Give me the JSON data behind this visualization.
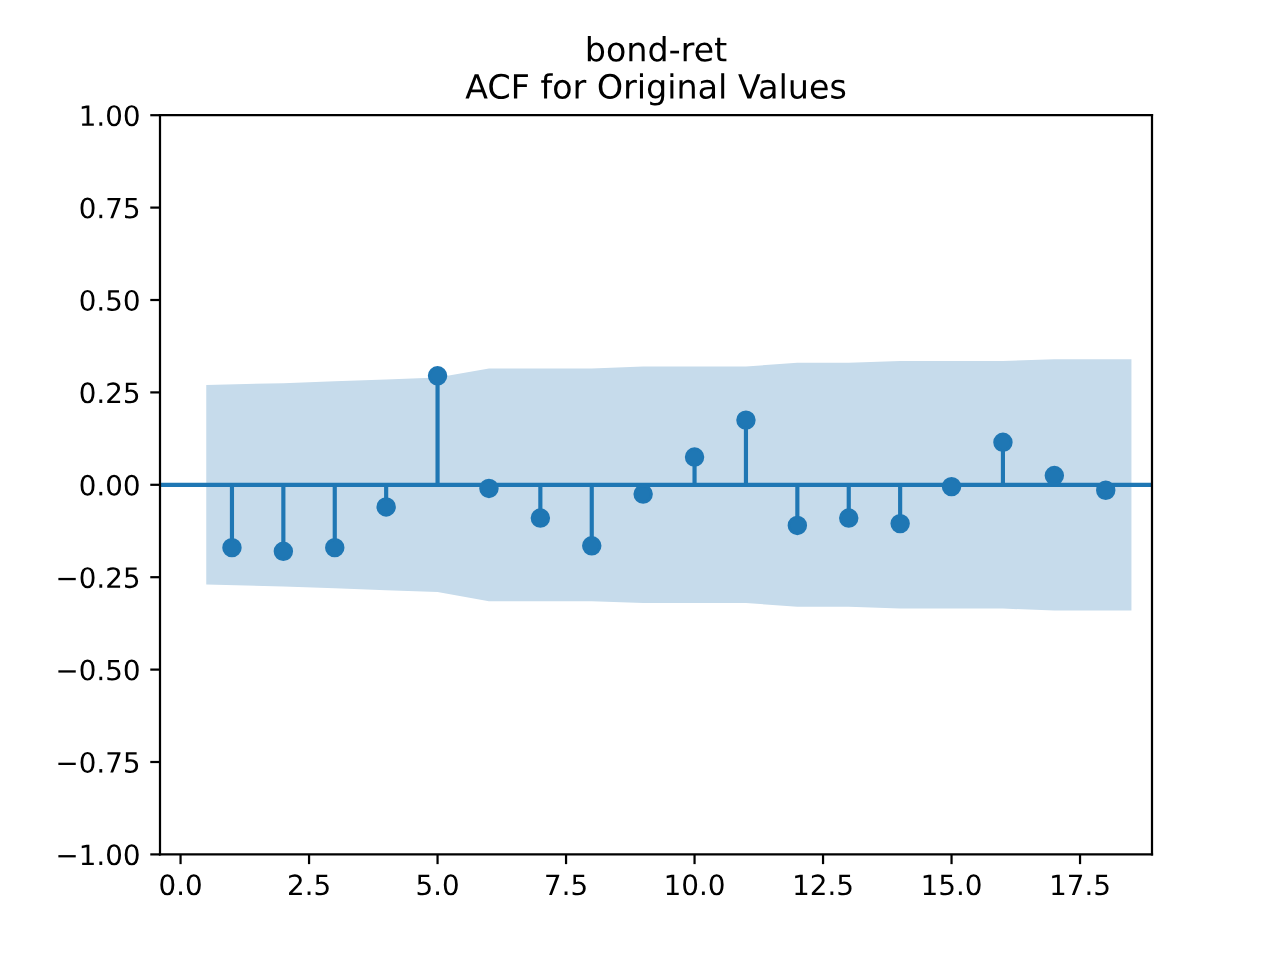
{
  "chart_data": {
    "type": "lollipop",
    "title": "bond-ret",
    "subtitle": "ACF for Original Values",
    "x": [
      1,
      2,
      3,
      4,
      5,
      6,
      7,
      8,
      9,
      10,
      11,
      12,
      13,
      14,
      15,
      16,
      17,
      18
    ],
    "series": [
      {
        "color": "#1f77b4",
        "values": [
          -0.17,
          -0.18,
          -0.17,
          -0.06,
          0.295,
          -0.01,
          -0.09,
          -0.165,
          -0.025,
          0.075,
          0.175,
          -0.11,
          -0.09,
          -0.105,
          -0.005,
          0.115,
          0.025,
          -0.015
        ]
      },
      {
        "type": "line",
        "color": "#c6dbeb",
        "x": [
          0.5,
          2,
          3,
          4,
          5,
          6,
          7,
          8,
          9,
          10,
          11,
          12,
          13,
          14,
          15,
          16,
          17,
          18.5
        ],
        "values": [
          null,
          null,
          null,
          null,
          null,
          null,
          null,
          null,
          null,
          null,
          null,
          null,
          null,
          null,
          null,
          null,
          null,
          null
        ],
        "lower": [
          -0.27,
          -0.275,
          -0.28,
          -0.285,
          -0.29,
          -0.315,
          -0.315,
          -0.315,
          -0.32,
          -0.32,
          -0.32,
          -0.33,
          -0.33,
          -0.335,
          -0.335,
          -0.335,
          -0.34,
          -0.34
        ],
        "upper": [
          0.27,
          0.275,
          0.28,
          0.285,
          0.29,
          0.315,
          0.315,
          0.315,
          0.32,
          0.32,
          0.32,
          0.33,
          0.33,
          0.335,
          0.335,
          0.335,
          0.34,
          0.34
        ]
      }
    ],
    "ref_lines": [
      {
        "axis": "y",
        "value": 0,
        "color": "#1f77b4"
      }
    ],
    "xlim": [
      -0.4,
      18.9
    ],
    "ylim": [
      -1.0,
      1.0
    ],
    "xticks": [
      {
        "value": 0,
        "label": "0.0"
      },
      {
        "value": 2.5,
        "label": "2.5"
      },
      {
        "value": 5,
        "label": "5.0"
      },
      {
        "value": 7.5,
        "label": "7.5"
      },
      {
        "value": 10,
        "label": "10.0"
      },
      {
        "value": 12.5,
        "label": "12.5"
      },
      {
        "value": 15,
        "label": "15.0"
      },
      {
        "value": 17.5,
        "label": "17.5"
      }
    ],
    "yticks": [
      {
        "value": -1,
        "label": "−1.00"
      },
      {
        "value": -0.75,
        "label": "−0.75"
      },
      {
        "value": -0.5,
        "label": "−0.50"
      },
      {
        "value": -0.25,
        "label": "−0.25"
      },
      {
        "value": 0,
        "label": "0.00"
      },
      {
        "value": 0.25,
        "label": "0.25"
      },
      {
        "value": 0.5,
        "label": "0.50"
      },
      {
        "value": 0.75,
        "label": "0.75"
      },
      {
        "value": 1,
        "label": "1.00"
      }
    ],
    "marker": "circle",
    "grid": false,
    "legend": false
  }
}
